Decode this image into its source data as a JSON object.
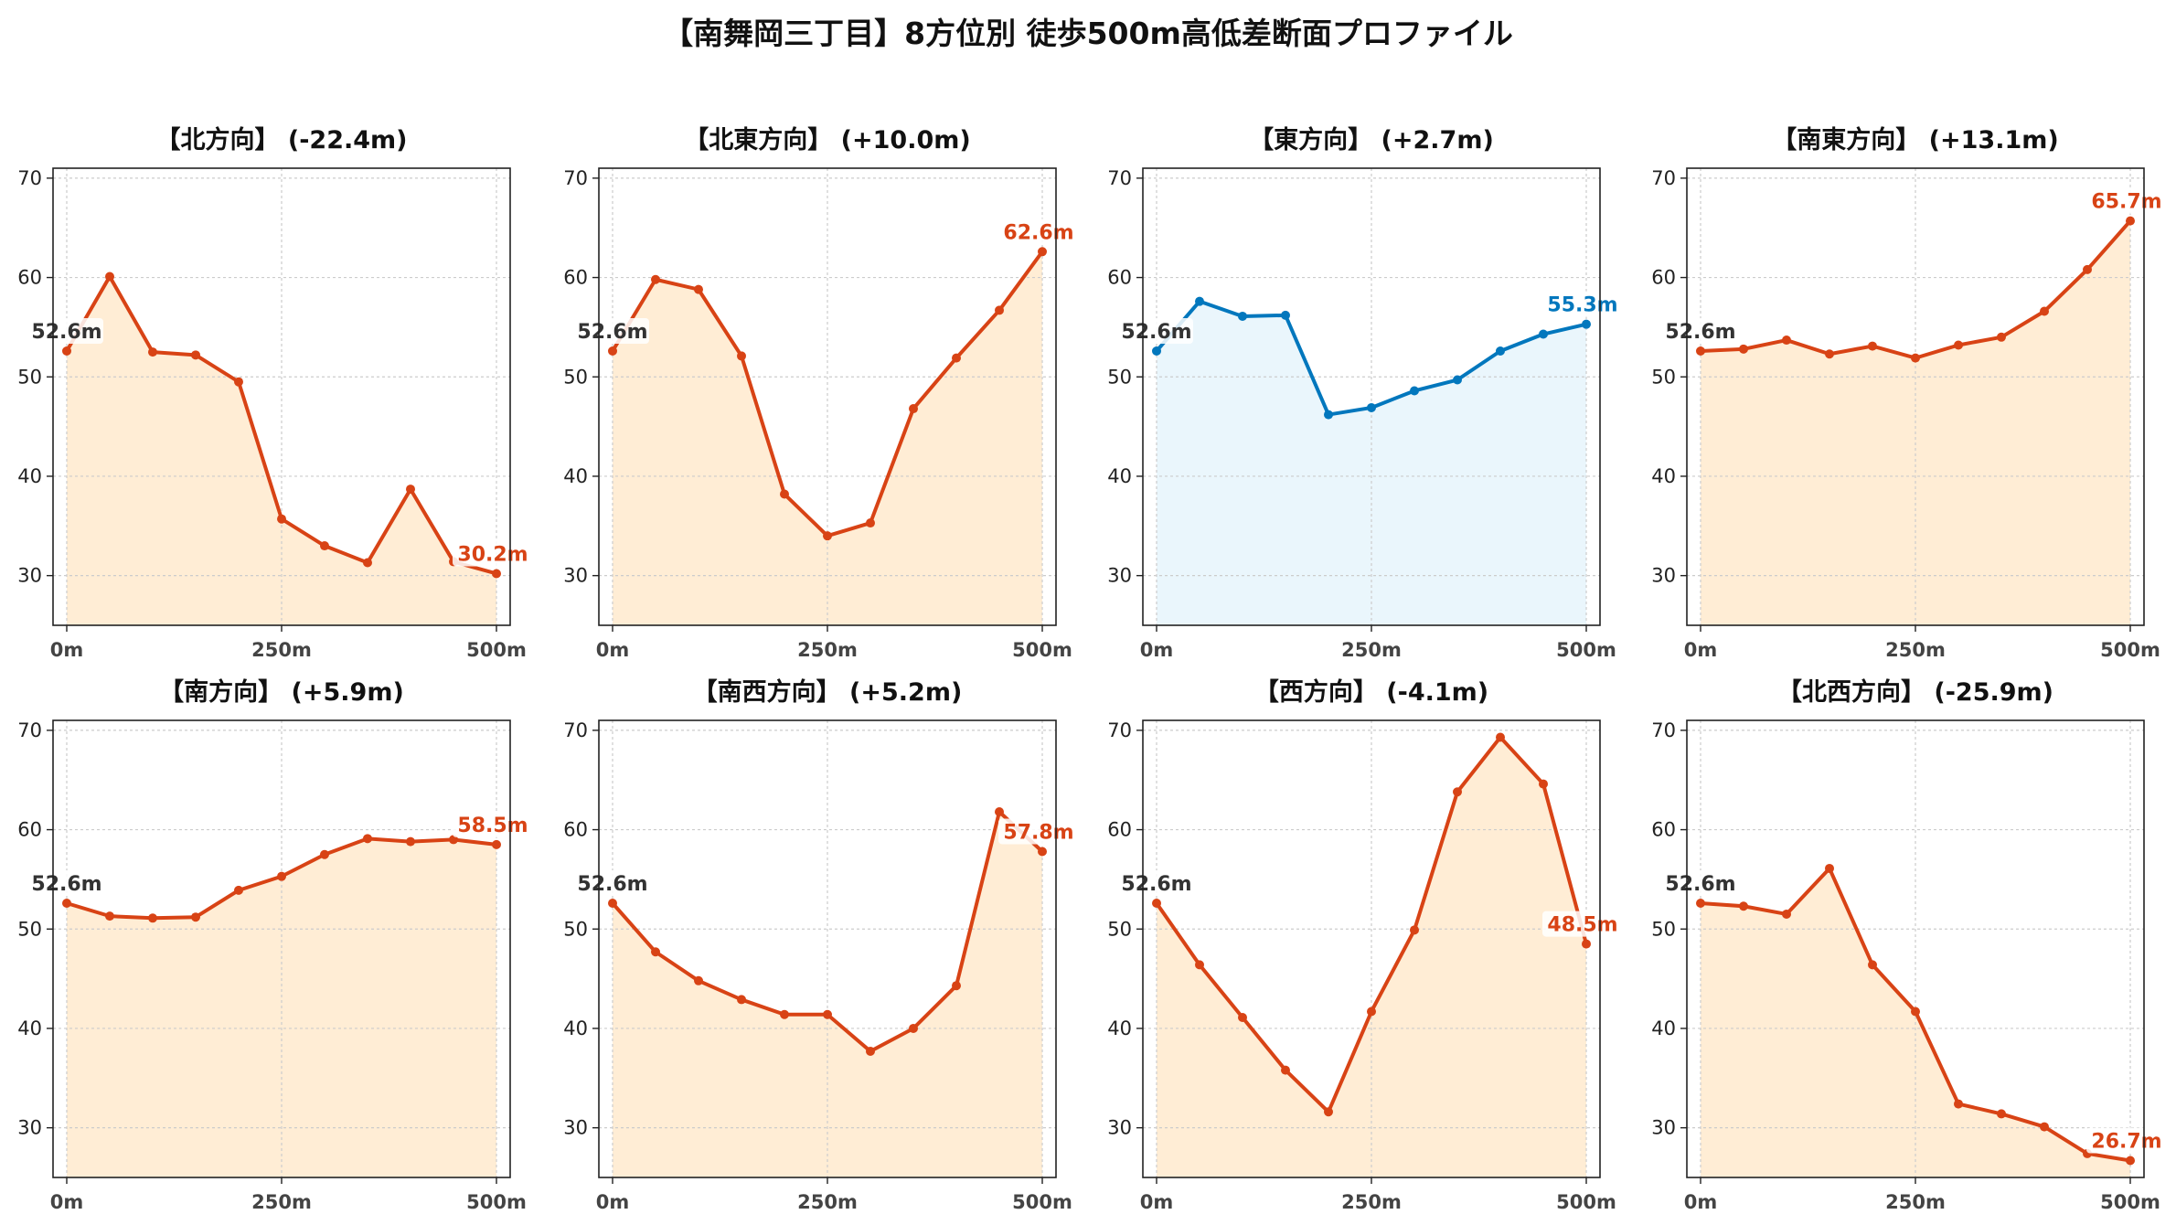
{
  "title": "【南舞岡三丁目】8方位別 徒歩500m高低差断面プロファイル",
  "colors": {
    "warm_line": "#d84315",
    "warm_fill": "#ffedd5",
    "cool_line": "#0277bd",
    "cool_fill": "#eaf6fc",
    "start_label": "#333333",
    "grid": "#cccccc"
  },
  "chart_data": [
    {
      "type": "area",
      "title": "【北方向】 (-22.4m)",
      "x": [
        0,
        50,
        100,
        150,
        200,
        250,
        300,
        350,
        400,
        450,
        500
      ],
      "values": [
        52.6,
        60.1,
        52.5,
        52.2,
        49.5,
        35.7,
        33.0,
        31.3,
        38.7,
        31.4,
        30.2
      ],
      "start_label": "52.6m",
      "end_label": "30.2m",
      "xticklabels": [
        "0m",
        "250m",
        "500m"
      ],
      "ylim": [
        25,
        71
      ],
      "yticks": [
        30,
        40,
        50,
        60,
        70
      ],
      "color_scheme": "warm",
      "grid": true
    },
    {
      "type": "area",
      "title": "【北東方向】 (+10.0m)",
      "x": [
        0,
        50,
        100,
        150,
        200,
        250,
        300,
        350,
        400,
        450,
        500
      ],
      "values": [
        52.6,
        59.8,
        58.8,
        52.1,
        38.2,
        34.0,
        35.3,
        46.8,
        51.9,
        56.7,
        62.6
      ],
      "start_label": "52.6m",
      "end_label": "62.6m",
      "xticklabels": [
        "0m",
        "250m",
        "500m"
      ],
      "ylim": [
        25,
        71
      ],
      "yticks": [
        30,
        40,
        50,
        60,
        70
      ],
      "color_scheme": "warm",
      "grid": true
    },
    {
      "type": "area",
      "title": "【東方向】 (+2.7m)",
      "x": [
        0,
        50,
        100,
        150,
        200,
        250,
        300,
        350,
        400,
        450,
        500
      ],
      "values": [
        52.6,
        57.6,
        56.1,
        56.2,
        46.2,
        46.9,
        48.6,
        49.7,
        52.6,
        54.3,
        55.3
      ],
      "start_label": "52.6m",
      "end_label": "55.3m",
      "xticklabels": [
        "0m",
        "250m",
        "500m"
      ],
      "ylim": [
        25,
        71
      ],
      "yticks": [
        30,
        40,
        50,
        60,
        70
      ],
      "color_scheme": "cool",
      "grid": true
    },
    {
      "type": "area",
      "title": "【南東方向】 (+13.1m)",
      "x": [
        0,
        50,
        100,
        150,
        200,
        250,
        300,
        350,
        400,
        450,
        500
      ],
      "values": [
        52.6,
        52.8,
        53.7,
        52.3,
        53.1,
        51.9,
        53.2,
        54.0,
        56.6,
        60.8,
        65.7
      ],
      "start_label": "52.6m",
      "end_label": "65.7m",
      "xticklabels": [
        "0m",
        "250m",
        "500m"
      ],
      "ylim": [
        25,
        71
      ],
      "yticks": [
        30,
        40,
        50,
        60,
        70
      ],
      "color_scheme": "warm",
      "grid": true
    },
    {
      "type": "area",
      "title": "【南方向】 (+5.9m)",
      "x": [
        0,
        50,
        100,
        150,
        200,
        250,
        300,
        350,
        400,
        450,
        500
      ],
      "values": [
        52.6,
        51.3,
        51.1,
        51.2,
        53.9,
        55.3,
        57.5,
        59.1,
        58.8,
        59.0,
        58.5
      ],
      "start_label": "52.6m",
      "end_label": "58.5m",
      "xticklabels": [
        "0m",
        "250m",
        "500m"
      ],
      "ylim": [
        25,
        71
      ],
      "yticks": [
        30,
        40,
        50,
        60,
        70
      ],
      "color_scheme": "warm",
      "grid": true
    },
    {
      "type": "area",
      "title": "【南西方向】 (+5.2m)",
      "x": [
        0,
        50,
        100,
        150,
        200,
        250,
        300,
        350,
        400,
        450,
        500
      ],
      "values": [
        52.6,
        47.7,
        44.8,
        42.9,
        41.4,
        41.4,
        37.7,
        40.0,
        44.3,
        61.8,
        57.8
      ],
      "start_label": "52.6m",
      "end_label": "57.8m",
      "xticklabels": [
        "0m",
        "250m",
        "500m"
      ],
      "ylim": [
        25,
        71
      ],
      "yticks": [
        30,
        40,
        50,
        60,
        70
      ],
      "color_scheme": "warm",
      "grid": true
    },
    {
      "type": "area",
      "title": "【西方向】 (-4.1m)",
      "x": [
        0,
        50,
        100,
        150,
        200,
        250,
        300,
        350,
        400,
        450,
        500
      ],
      "values": [
        52.6,
        46.4,
        41.1,
        35.8,
        31.6,
        41.7,
        49.9,
        63.8,
        69.3,
        64.6,
        48.5
      ],
      "start_label": "52.6m",
      "end_label": "48.5m",
      "xticklabels": [
        "0m",
        "250m",
        "500m"
      ],
      "ylim": [
        25,
        71
      ],
      "yticks": [
        30,
        40,
        50,
        60,
        70
      ],
      "color_scheme": "warm",
      "grid": true
    },
    {
      "type": "area",
      "title": "【北西方向】 (-25.9m)",
      "x": [
        0,
        50,
        100,
        150,
        200,
        250,
        300,
        350,
        400,
        450,
        500
      ],
      "values": [
        52.6,
        52.3,
        51.5,
        56.1,
        46.4,
        41.7,
        32.4,
        31.4,
        30.1,
        27.4,
        26.7
      ],
      "start_label": "52.6m",
      "end_label": "26.7m",
      "xticklabels": [
        "0m",
        "250m",
        "500m"
      ],
      "ylim": [
        25,
        71
      ],
      "yticks": [
        30,
        40,
        50,
        60,
        70
      ],
      "color_scheme": "warm",
      "grid": true
    }
  ]
}
